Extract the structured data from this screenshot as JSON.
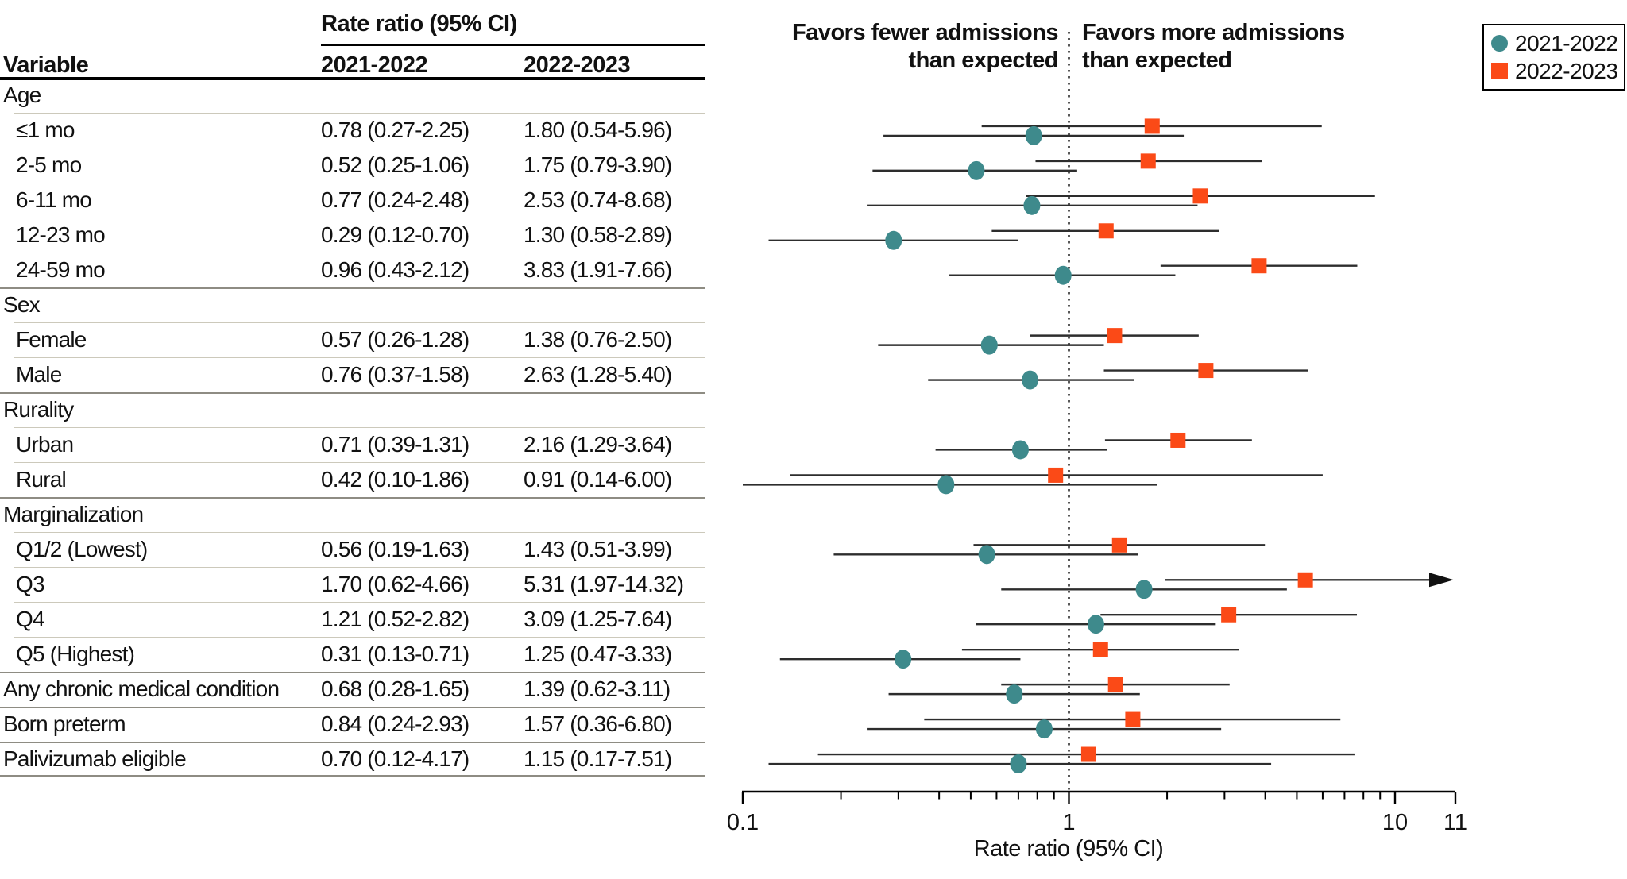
{
  "figure": {
    "table": {
      "spanner_header": "Rate ratio (95% CI)",
      "columns": [
        "Variable",
        "2021-2022",
        "2022-2023"
      ]
    },
    "annotations": {
      "favors_left": "Favors fewer admissions\nthan expected",
      "favors_right": "Favors more admissions\nthan expected"
    },
    "legend": {
      "items": [
        {
          "label": "2021-2022",
          "marker": "circle",
          "color": "#3E8A8C"
        },
        {
          "label": "2022-2023",
          "marker": "square",
          "color": "#FB4A17"
        }
      ]
    },
    "chart_data": {
      "type": "forest",
      "x_axis": {
        "label": "Rate ratio (95% CI)",
        "scale": "log",
        "tick_labels": [
          "0.1",
          "1",
          "10",
          "11"
        ],
        "tick_values": [
          0.1,
          1,
          10,
          11
        ],
        "range": [
          0.1,
          11
        ],
        "reference_line": 1
      },
      "series": [
        {
          "name": "2021-2022",
          "marker": "circle",
          "color": "#3E8A8C"
        },
        {
          "name": "2022-2023",
          "marker": "square",
          "color": "#FB4A17"
        }
      ],
      "ci_line_color": "#2D2D2D",
      "rows": [
        {
          "label": "Age",
          "group": true,
          "indent": false,
          "rule": "none"
        },
        {
          "label": "≤1 mo",
          "indent": true,
          "rule": "minor",
          "rr": [
            "0.78 (0.27-2.25)",
            "1.80 (0.54-5.96)"
          ],
          "v2021": [
            0.78,
            0.27,
            2.25
          ],
          "v2022": [
            1.8,
            0.54,
            5.96
          ]
        },
        {
          "label": "2-5 mo",
          "indent": true,
          "rule": "minor",
          "rr": [
            "0.52 (0.25-1.06)",
            "1.75 (0.79-3.90)"
          ],
          "v2021": [
            0.52,
            0.25,
            1.06
          ],
          "v2022": [
            1.75,
            0.79,
            3.9
          ]
        },
        {
          "label": "6-11 mo",
          "indent": true,
          "rule": "minor",
          "rr": [
            "0.77 (0.24-2.48)",
            "2.53 (0.74-8.68)"
          ],
          "v2021": [
            0.77,
            0.24,
            2.48
          ],
          "v2022": [
            2.53,
            0.74,
            8.68
          ]
        },
        {
          "label": "12-23 mo",
          "indent": true,
          "rule": "minor",
          "rr": [
            "0.29 (0.12-0.70)",
            "1.30 (0.58-2.89)"
          ],
          "v2021": [
            0.29,
            0.12,
            0.7
          ],
          "v2022": [
            1.3,
            0.58,
            2.89
          ]
        },
        {
          "label": "24-59 mo",
          "indent": true,
          "rule": "minor",
          "rr": [
            "0.96 (0.43-2.12)",
            "3.83 (1.91-7.66)"
          ],
          "v2021": [
            0.96,
            0.43,
            2.12
          ],
          "v2022": [
            3.83,
            1.91,
            7.66
          ]
        },
        {
          "label": "Sex",
          "group": true,
          "indent": false,
          "rule": "major"
        },
        {
          "label": "Female",
          "indent": true,
          "rule": "minor",
          "rr": [
            "0.57 (0.26-1.28)",
            "1.38 (0.76-2.50)"
          ],
          "v2021": [
            0.57,
            0.26,
            1.28
          ],
          "v2022": [
            1.38,
            0.76,
            2.5
          ]
        },
        {
          "label": "Male",
          "indent": true,
          "rule": "minor",
          "rr": [
            "0.76 (0.37-1.58)",
            "2.63 (1.28-5.40)"
          ],
          "v2021": [
            0.76,
            0.37,
            1.58
          ],
          "v2022": [
            2.63,
            1.28,
            5.4
          ]
        },
        {
          "label": "Rurality",
          "group": true,
          "indent": false,
          "rule": "major"
        },
        {
          "label": "Urban",
          "indent": true,
          "rule": "minor",
          "rr": [
            "0.71 (0.39-1.31)",
            "2.16 (1.29-3.64)"
          ],
          "v2021": [
            0.71,
            0.39,
            1.31
          ],
          "v2022": [
            2.16,
            1.29,
            3.64
          ]
        },
        {
          "label": "Rural",
          "indent": true,
          "rule": "minor",
          "rr": [
            "0.42 (0.10-1.86)",
            "0.91 (0.14-6.00)"
          ],
          "v2021": [
            0.42,
            0.1,
            1.86
          ],
          "v2022": [
            0.91,
            0.14,
            6.0
          ]
        },
        {
          "label": "Marginalization",
          "group": true,
          "indent": false,
          "rule": "major"
        },
        {
          "label": "Q1/2 (Lowest)",
          "indent": true,
          "rule": "minor",
          "rr": [
            "0.56 (0.19-1.63)",
            "1.43 (0.51-3.99)"
          ],
          "v2021": [
            0.56,
            0.19,
            1.63
          ],
          "v2022": [
            1.43,
            0.51,
            3.99
          ]
        },
        {
          "label": "Q3",
          "indent": true,
          "rule": "minor",
          "rr": [
            "1.70 (0.62-4.66)",
            "5.31 (1.97-14.32)"
          ],
          "v2021": [
            1.7,
            0.62,
            4.66
          ],
          "v2022": [
            5.31,
            1.97,
            14.32
          ],
          "arrow2022": true
        },
        {
          "label": "Q4",
          "indent": true,
          "rule": "minor",
          "rr": [
            "1.21 (0.52-2.82)",
            "3.09 (1.25-7.64)"
          ],
          "v2021": [
            1.21,
            0.52,
            2.82
          ],
          "v2022": [
            3.09,
            1.25,
            7.64
          ]
        },
        {
          "label": "Q5 (Highest)",
          "indent": true,
          "rule": "minor",
          "rr": [
            "0.31 (0.13-0.71)",
            "1.25 (0.47-3.33)"
          ],
          "v2021": [
            0.31,
            0.13,
            0.71
          ],
          "v2022": [
            1.25,
            0.47,
            3.33
          ]
        },
        {
          "label": "Any chronic medical condition",
          "indent": false,
          "rule": "major",
          "rr": [
            "0.68 (0.28-1.65)",
            "1.39 (0.62-3.11)"
          ],
          "v2021": [
            0.68,
            0.28,
            1.65
          ],
          "v2022": [
            1.39,
            0.62,
            3.11
          ]
        },
        {
          "label": "Born preterm",
          "indent": false,
          "rule": "major",
          "rr": [
            "0.84 (0.24-2.93)",
            "1.57 (0.36-6.80)"
          ],
          "v2021": [
            0.84,
            0.24,
            2.93
          ],
          "v2022": [
            1.57,
            0.36,
            6.8
          ]
        },
        {
          "label": "Palivizumab eligible",
          "indent": false,
          "rule": "major",
          "rr": [
            "0.70 (0.12-4.17)",
            "1.15 (0.17-7.51)"
          ],
          "v2021": [
            0.7,
            0.12,
            4.17
          ],
          "v2022": [
            1.15,
            0.17,
            7.51
          ]
        }
      ]
    }
  }
}
